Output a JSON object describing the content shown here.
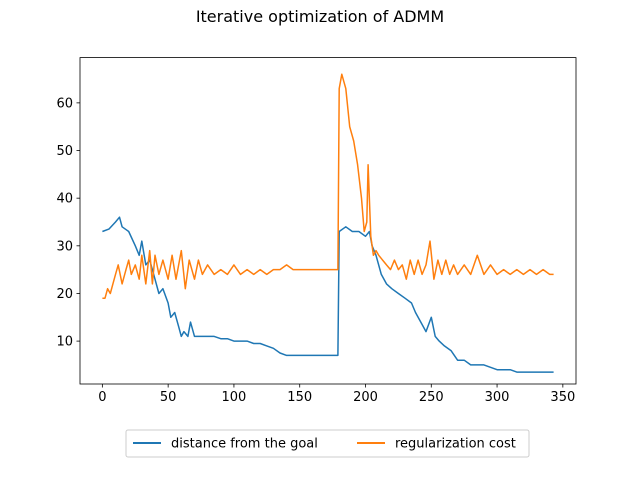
{
  "chart_data": {
    "type": "line",
    "title": "Iterative optimization of ADMM",
    "xlabel": "",
    "ylabel": "",
    "xlim": [
      -17,
      360
    ],
    "ylim": [
      1.0,
      69.5
    ],
    "xticks": [
      0,
      50,
      100,
      150,
      200,
      250,
      300,
      350
    ],
    "yticks": [
      10,
      20,
      30,
      40,
      50,
      60
    ],
    "grid": false,
    "legend_position": "bottom-center",
    "series": [
      {
        "name": "distance from the goal",
        "color": "#1f77b4",
        "points": [
          [
            0,
            33
          ],
          [
            5,
            33.5
          ],
          [
            10,
            35
          ],
          [
            13,
            36
          ],
          [
            15,
            34
          ],
          [
            20,
            33
          ],
          [
            25,
            30
          ],
          [
            28,
            28
          ],
          [
            30,
            31
          ],
          [
            33,
            26
          ],
          [
            36,
            27
          ],
          [
            40,
            23
          ],
          [
            43,
            20
          ],
          [
            46,
            21
          ],
          [
            50,
            18
          ],
          [
            52,
            15
          ],
          [
            55,
            16
          ],
          [
            58,
            13
          ],
          [
            60,
            11
          ],
          [
            62,
            12
          ],
          [
            65,
            11
          ],
          [
            67,
            14
          ],
          [
            70,
            11
          ],
          [
            75,
            11
          ],
          [
            80,
            11
          ],
          [
            85,
            11
          ],
          [
            90,
            10.5
          ],
          [
            95,
            10.5
          ],
          [
            100,
            10
          ],
          [
            105,
            10
          ],
          [
            110,
            10
          ],
          [
            115,
            9.5
          ],
          [
            120,
            9.5
          ],
          [
            125,
            9
          ],
          [
            130,
            8.5
          ],
          [
            135,
            7.5
          ],
          [
            140,
            7
          ],
          [
            150,
            7
          ],
          [
            160,
            7
          ],
          [
            170,
            7
          ],
          [
            178,
            7
          ],
          [
            179,
            7
          ],
          [
            180,
            33
          ],
          [
            185,
            34
          ],
          [
            190,
            33
          ],
          [
            195,
            33
          ],
          [
            200,
            32
          ],
          [
            203,
            33
          ],
          [
            205,
            30
          ],
          [
            208,
            28
          ],
          [
            212,
            24
          ],
          [
            216,
            22
          ],
          [
            220,
            21
          ],
          [
            225,
            20
          ],
          [
            230,
            19
          ],
          [
            235,
            18
          ],
          [
            238,
            16
          ],
          [
            242,
            14
          ],
          [
            246,
            12
          ],
          [
            250,
            15
          ],
          [
            253,
            11
          ],
          [
            256,
            10
          ],
          [
            260,
            9
          ],
          [
            265,
            8
          ],
          [
            270,
            6
          ],
          [
            275,
            6
          ],
          [
            280,
            5
          ],
          [
            285,
            5
          ],
          [
            290,
            5
          ],
          [
            295,
            4.5
          ],
          [
            300,
            4
          ],
          [
            305,
            4
          ],
          [
            310,
            4
          ],
          [
            315,
            3.5
          ],
          [
            320,
            3.5
          ],
          [
            330,
            3.5
          ],
          [
            340,
            3.5
          ],
          [
            343,
            3.5
          ]
        ]
      },
      {
        "name": "regularization cost",
        "color": "#ff7f0e",
        "points": [
          [
            0,
            19
          ],
          [
            2,
            19
          ],
          [
            4,
            21
          ],
          [
            6,
            20
          ],
          [
            8,
            22
          ],
          [
            10,
            24
          ],
          [
            12,
            26
          ],
          [
            15,
            22
          ],
          [
            18,
            25
          ],
          [
            20,
            27
          ],
          [
            22,
            24
          ],
          [
            25,
            26
          ],
          [
            28,
            23
          ],
          [
            30,
            28
          ],
          [
            33,
            22
          ],
          [
            36,
            29
          ],
          [
            38,
            22
          ],
          [
            40,
            28
          ],
          [
            43,
            24
          ],
          [
            46,
            27
          ],
          [
            50,
            23
          ],
          [
            53,
            28
          ],
          [
            56,
            23
          ],
          [
            60,
            29
          ],
          [
            63,
            21
          ],
          [
            66,
            27
          ],
          [
            70,
            23
          ],
          [
            73,
            27
          ],
          [
            76,
            24
          ],
          [
            80,
            26
          ],
          [
            85,
            24
          ],
          [
            90,
            25
          ],
          [
            95,
            24
          ],
          [
            100,
            26
          ],
          [
            105,
            24
          ],
          [
            110,
            25
          ],
          [
            115,
            24
          ],
          [
            120,
            25
          ],
          [
            125,
            24
          ],
          [
            130,
            25
          ],
          [
            135,
            25
          ],
          [
            140,
            26
          ],
          [
            145,
            25
          ],
          [
            150,
            25
          ],
          [
            155,
            25
          ],
          [
            160,
            25
          ],
          [
            165,
            25
          ],
          [
            170,
            25
          ],
          [
            175,
            25
          ],
          [
            178,
            25
          ],
          [
            179,
            25
          ],
          [
            180,
            63
          ],
          [
            182,
            66
          ],
          [
            185,
            63
          ],
          [
            188,
            55
          ],
          [
            191,
            52
          ],
          [
            194,
            47
          ],
          [
            197,
            40
          ],
          [
            199,
            33
          ],
          [
            201,
            35
          ],
          [
            202,
            47
          ],
          [
            204,
            32
          ],
          [
            206,
            28
          ],
          [
            208,
            29
          ],
          [
            210,
            28
          ],
          [
            213,
            27
          ],
          [
            216,
            26
          ],
          [
            219,
            25
          ],
          [
            222,
            27
          ],
          [
            225,
            25
          ],
          [
            228,
            26
          ],
          [
            231,
            23
          ],
          [
            234,
            27
          ],
          [
            237,
            24
          ],
          [
            240,
            27
          ],
          [
            243,
            24
          ],
          [
            246,
            26
          ],
          [
            249,
            31
          ],
          [
            252,
            23
          ],
          [
            255,
            27
          ],
          [
            258,
            24
          ],
          [
            261,
            27
          ],
          [
            264,
            24
          ],
          [
            267,
            26
          ],
          [
            270,
            24
          ],
          [
            275,
            26
          ],
          [
            280,
            24
          ],
          [
            285,
            28
          ],
          [
            290,
            24
          ],
          [
            295,
            26
          ],
          [
            300,
            24
          ],
          [
            305,
            25
          ],
          [
            310,
            24
          ],
          [
            315,
            25
          ],
          [
            320,
            24
          ],
          [
            325,
            25
          ],
          [
            330,
            24
          ],
          [
            335,
            25
          ],
          [
            340,
            24
          ],
          [
            343,
            24
          ]
        ]
      }
    ]
  }
}
